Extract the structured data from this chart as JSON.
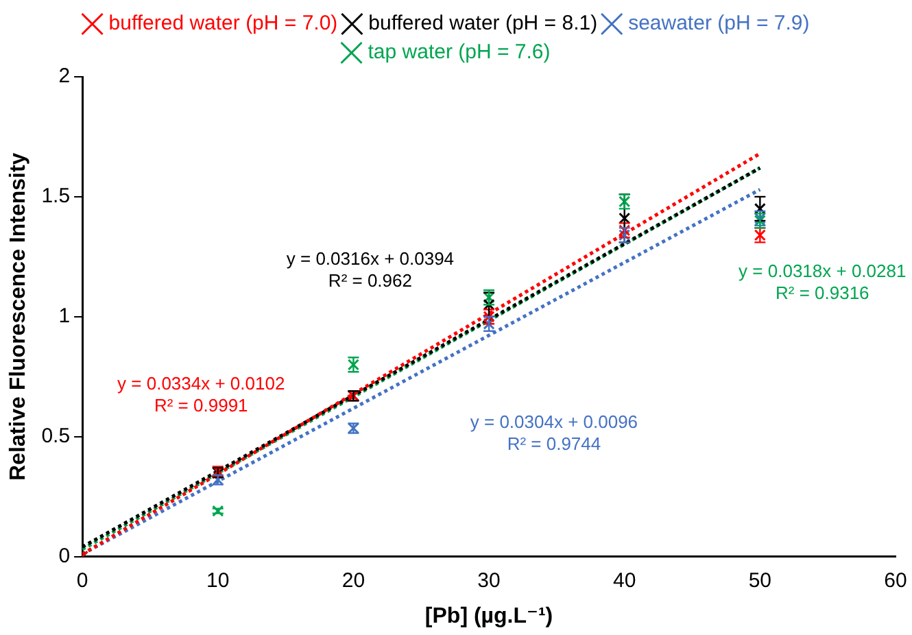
{
  "chart_data": {
    "type": "scatter",
    "xlabel": "[Pb] (µg.L⁻¹)",
    "ylabel": "Relative Fluorescence Intensity",
    "xlim": [
      0,
      60
    ],
    "xticks": [
      0,
      10,
      20,
      30,
      40,
      50,
      60
    ],
    "ylim": [
      0,
      2
    ],
    "yticks": [
      0,
      0.5,
      1,
      1.5,
      2
    ],
    "grid": false,
    "legend": "top",
    "marker": "cross",
    "series": [
      {
        "name": "buffered water (pH = 7.0)",
        "color": "#ff0000",
        "x": [
          0,
          10,
          20,
          30,
          40,
          50
        ],
        "values": [
          0,
          0.355,
          0.67,
          1.0,
          1.36,
          1.34
        ],
        "errors": [
          null,
          0.02,
          0.02,
          0.03,
          0.03,
          0.03
        ]
      },
      {
        "name": "buffered water (pH = 8.1)",
        "color": "#000000",
        "x": [
          0,
          10,
          20,
          30,
          40,
          50
        ],
        "values": [
          0,
          0.35,
          0.67,
          1.05,
          1.41,
          1.45
        ],
        "errors": [
          null,
          0.02,
          0.02,
          0.05,
          0.1,
          0.05
        ]
      },
      {
        "name": "seawater (pH = 7.9)",
        "color": "#4472c4",
        "x": [
          0,
          10,
          20,
          30,
          40,
          50
        ],
        "values": [
          0,
          0.32,
          0.535,
          0.97,
          1.34,
          1.41
        ],
        "errors": [
          null,
          0.02,
          0.02,
          0.03,
          0.03,
          0.03
        ]
      },
      {
        "name": "tap water (pH = 7.6)",
        "color": "#00a550",
        "x": [
          0,
          10,
          20,
          30,
          40,
          50
        ],
        "values": [
          0,
          0.19,
          0.8,
          1.08,
          1.48,
          1.4
        ],
        "errors": [
          null,
          0.01,
          0.03,
          0.03,
          0.03,
          0.03
        ]
      },
      {
        "type": "line",
        "line_style": "dotted",
        "marker": "none",
        "color": "#ff0000",
        "x": [
          0,
          50
        ],
        "values": [
          0.01,
          1.68
        ]
      },
      {
        "type": "line",
        "line_style": "dotted",
        "marker": "none",
        "color": "#000000",
        "x": [
          0,
          50
        ],
        "values": [
          0.04,
          1.62
        ]
      },
      {
        "type": "line",
        "line_style": "dotted",
        "marker": "none",
        "color": "#4472c4",
        "x": [
          0,
          50
        ],
        "values": [
          0.01,
          1.53
        ]
      },
      {
        "type": "line",
        "line_style": "dotted",
        "marker": "none",
        "color": "#00a550",
        "x": [
          0,
          50
        ],
        "values": [
          0.03,
          1.62
        ]
      }
    ],
    "annotations": [
      "y = 0.0334x + 0.0102\nR² = 0.9991",
      "y = 0.0316x + 0.0394\nR² = 0.962",
      "y = 0.0304x + 0.0096\nR² = 0.9744",
      "y = 0.0318x + 0.0281\nR² = 0.9316"
    ]
  }
}
